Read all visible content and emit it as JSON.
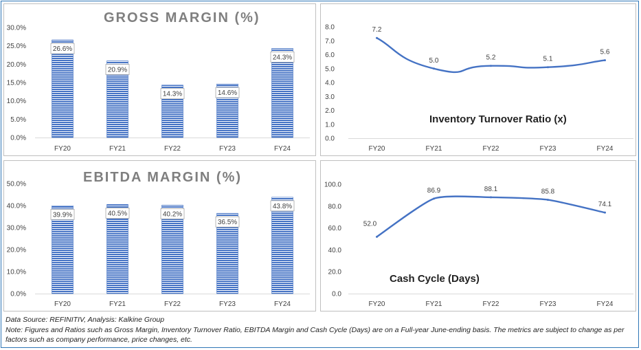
{
  "footer": {
    "source": "Data Source: REFINITIV, Analysis: Kalkine Group",
    "note": "Note: Figures and Ratios such as Gross Margin, Inventory Turnover Ratio, EBITDA Margin and Cash Cycle (Days) are on a Full-year June-ending basis. The metrics are subject to change as per factors such as company performance, price changes, etc."
  },
  "colors": {
    "bar": "#4472c4",
    "line": "#4472c4",
    "title": "#7f7f7f",
    "label": "#404040"
  },
  "chart_data": [
    {
      "id": "gross",
      "type": "bar",
      "title": "GROSS MARGIN (%)",
      "categories": [
        "FY20",
        "FY21",
        "FY22",
        "FY23",
        "FY24"
      ],
      "values": [
        26.6,
        20.9,
        14.3,
        14.6,
        24.3
      ],
      "value_labels": [
        "26.6%",
        "20.9%",
        "14.3%",
        "14.6%",
        "24.3%"
      ],
      "yticks": [
        "0.0%",
        "5.0%",
        "10.0%",
        "15.0%",
        "20.0%",
        "25.0%",
        "30.0%"
      ],
      "ylim": [
        0,
        30
      ],
      "grid": false
    },
    {
      "id": "inventory",
      "type": "line",
      "title": "Inventory Turnover Ratio (x)",
      "categories": [
        "FY20",
        "FY21",
        "FY22",
        "FY23",
        "FY24"
      ],
      "values": [
        7.2,
        5.0,
        5.2,
        5.1,
        5.6
      ],
      "value_labels": [
        "7.2",
        "5.0",
        "5.2",
        "5.1",
        "5.6"
      ],
      "yticks": [
        "0.0",
        "1.0",
        "2.0",
        "3.0",
        "4.0",
        "5.0",
        "6.0",
        "7.0",
        "8.0"
      ],
      "ylim": [
        0,
        8
      ],
      "grid": false
    },
    {
      "id": "ebitda",
      "type": "bar",
      "title": "EBITDA MARGIN (%)",
      "categories": [
        "FY20",
        "FY21",
        "FY22",
        "FY23",
        "FY24"
      ],
      "values": [
        39.9,
        40.5,
        40.2,
        36.5,
        43.8
      ],
      "value_labels": [
        "39.9%",
        "40.5%",
        "40.2%",
        "36.5%",
        "43.8%"
      ],
      "yticks": [
        "0.0%",
        "10.0%",
        "20.0%",
        "30.0%",
        "40.0%",
        "50.0%"
      ],
      "ylim": [
        0,
        50
      ],
      "grid": false
    },
    {
      "id": "cash",
      "type": "line",
      "title": "Cash Cycle (Days)",
      "categories": [
        "FY20",
        "FY21",
        "FY22",
        "FY23",
        "FY24"
      ],
      "values": [
        52.0,
        86.9,
        88.1,
        85.8,
        74.1
      ],
      "value_labels": [
        "52.0",
        "86.9",
        "88.1",
        "85.8",
        "74.1"
      ],
      "yticks": [
        "0.0",
        "20.0",
        "40.0",
        "60.0",
        "80.0",
        "100.0"
      ],
      "ylim": [
        0,
        100
      ],
      "grid": false
    }
  ]
}
